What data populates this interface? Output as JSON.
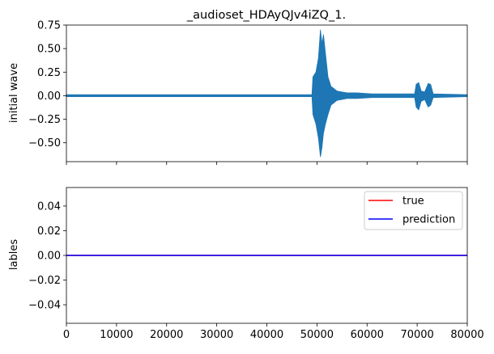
{
  "chart_data": [
    {
      "type": "line",
      "title": "_audioset_HDAyQJv4iZQ_1.",
      "xlabel": "",
      "ylabel": "initial wave",
      "xlim": [
        0,
        80000
      ],
      "ylim": [
        -0.7,
        0.75
      ],
      "x_ticks": [
        0,
        10000,
        20000,
        30000,
        40000,
        50000,
        60000,
        70000,
        80000
      ],
      "y_ticks": [
        -0.5,
        -0.25,
        0.0,
        0.25,
        0.5,
        0.75
      ],
      "y_tick_labels": [
        "−0.50",
        "−0.25",
        "0.00",
        "0.25",
        "0.50",
        "0.75"
      ],
      "x_tick_labels_shown": false,
      "series": [
        {
          "color": "#1f77b4",
          "baseline": 0.0,
          "envelope": [
            {
              "x": 0,
              "upper": 0.01,
              "lower": -0.01
            },
            {
              "x": 49000,
              "upper": 0.01,
              "lower": -0.01
            },
            {
              "x": 49200,
              "upper": 0.2,
              "lower": -0.2
            },
            {
              "x": 49800,
              "upper": 0.25,
              "lower": -0.3
            },
            {
              "x": 50300,
              "upper": 0.4,
              "lower": -0.45
            },
            {
              "x": 50700,
              "upper": 0.7,
              "lower": -0.65
            },
            {
              "x": 51000,
              "upper": 0.55,
              "lower": -0.55
            },
            {
              "x": 51300,
              "upper": 0.65,
              "lower": -0.4
            },
            {
              "x": 51700,
              "upper": 0.45,
              "lower": -0.3
            },
            {
              "x": 52200,
              "upper": 0.2,
              "lower": -0.2
            },
            {
              "x": 52800,
              "upper": 0.1,
              "lower": -0.1
            },
            {
              "x": 54000,
              "upper": 0.05,
              "lower": -0.05
            },
            {
              "x": 56000,
              "upper": 0.03,
              "lower": -0.03
            },
            {
              "x": 58000,
              "upper": 0.03,
              "lower": -0.03
            },
            {
              "x": 61000,
              "upper": 0.02,
              "lower": -0.02
            },
            {
              "x": 64000,
              "upper": 0.02,
              "lower": -0.02
            },
            {
              "x": 69500,
              "upper": 0.02,
              "lower": -0.02
            },
            {
              "x": 69800,
              "upper": 0.12,
              "lower": -0.12
            },
            {
              "x": 70300,
              "upper": 0.14,
              "lower": -0.15
            },
            {
              "x": 70800,
              "upper": 0.05,
              "lower": -0.06
            },
            {
              "x": 71500,
              "upper": 0.04,
              "lower": -0.04
            },
            {
              "x": 72200,
              "upper": 0.13,
              "lower": -0.12
            },
            {
              "x": 72700,
              "upper": 0.12,
              "lower": -0.1
            },
            {
              "x": 73200,
              "upper": 0.02,
              "lower": -0.02
            },
            {
              "x": 80000,
              "upper": 0.01,
              "lower": -0.01
            }
          ]
        }
      ],
      "grid": false
    },
    {
      "type": "line",
      "title": "",
      "xlabel": "",
      "ylabel": "lables",
      "xlim": [
        0,
        80000
      ],
      "ylim": [
        -0.055,
        0.055
      ],
      "x_ticks": [
        0,
        10000,
        20000,
        30000,
        40000,
        50000,
        60000,
        70000,
        80000
      ],
      "x_tick_labels": [
        "0",
        "10000",
        "20000",
        "30000",
        "40000",
        "50000",
        "60000",
        "70000",
        "80000"
      ],
      "y_ticks": [
        -0.04,
        -0.02,
        0.0,
        0.02,
        0.04
      ],
      "y_tick_labels": [
        "−0.04",
        "−0.02",
        "0.00",
        "0.02",
        "0.04"
      ],
      "series": [
        {
          "name": "true",
          "color": "#ff0000",
          "x": [
            0,
            80000
          ],
          "y": [
            0,
            0
          ]
        },
        {
          "name": "prediction",
          "color": "#0000ff",
          "x": [
            0,
            80000
          ],
          "y": [
            0,
            0
          ]
        }
      ],
      "legend": "top-right",
      "grid": false
    }
  ]
}
